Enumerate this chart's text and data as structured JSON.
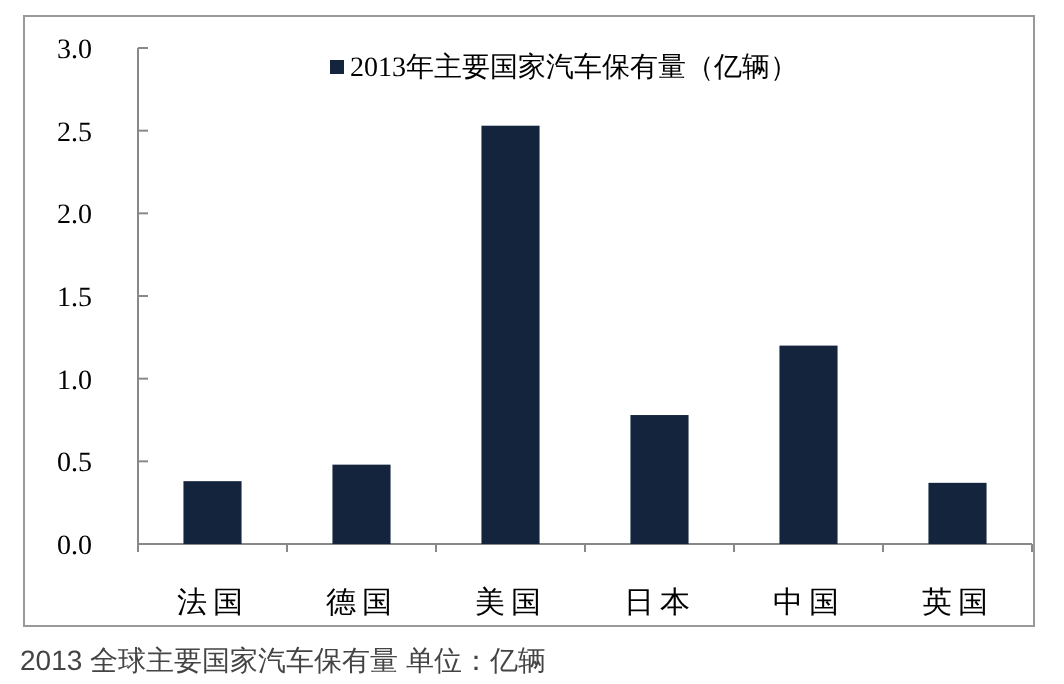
{
  "chart_data": {
    "type": "bar",
    "categories": [
      "法国",
      "德国",
      "美国",
      "日本",
      "中国",
      "英国"
    ],
    "series": [
      {
        "name": "2013年主要国家汽车保有量（亿辆）",
        "color": "#15243d",
        "values": [
          0.38,
          0.48,
          2.53,
          0.78,
          1.2,
          0.37
        ]
      }
    ],
    "ylim": [
      0,
      3.0
    ],
    "yticks": [
      {
        "value": 0,
        "label": "0.0"
      },
      {
        "value": 0.5,
        "label": "0.5"
      },
      {
        "value": 1,
        "label": "1.0"
      },
      {
        "value": 1.5,
        "label": "1.5"
      },
      {
        "value": 2,
        "label": "2.0"
      },
      {
        "value": 2.5,
        "label": "2.5"
      },
      {
        "value": 3,
        "label": "3.0"
      }
    ],
    "legend": "top",
    "annotations": [
      "2013 全球主要国家汽车保有量 单位：亿辆"
    ]
  }
}
